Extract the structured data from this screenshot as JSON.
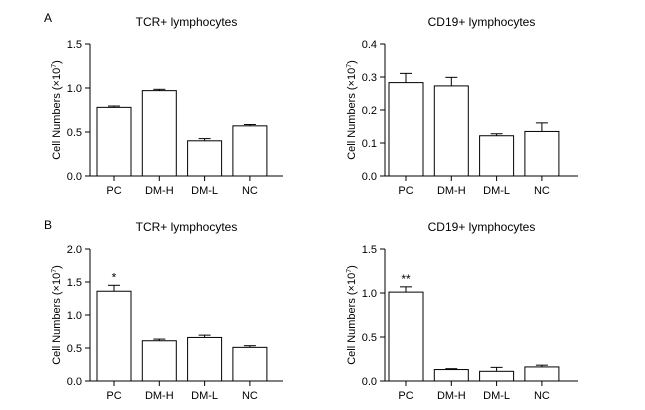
{
  "panels": [
    {
      "letter": "A"
    },
    {
      "letter": "B"
    }
  ],
  "chart_data": [
    {
      "type": "bar",
      "panel": "A",
      "title": "TCR+ lymphocytes",
      "ylabel_main": "Cell Numbers (×10",
      "ylabel_exp": "7",
      "ylabel_close": ")",
      "categories": [
        "PC",
        "DM-H",
        "DM-L",
        "NC"
      ],
      "values": [
        0.78,
        0.97,
        0.4,
        0.57
      ],
      "errors": [
        0.015,
        0.015,
        0.025,
        0.015
      ],
      "annotations": [
        "",
        "",
        "",
        ""
      ],
      "ylim": [
        0,
        1.5
      ],
      "yticks": [
        0,
        0.5,
        1.0,
        1.5
      ],
      "ytick_labels": [
        "0.0",
        "0.5",
        "1.0",
        "1.5"
      ]
    },
    {
      "type": "bar",
      "panel": "A",
      "title": "CD19+ lymphocytes",
      "ylabel_main": "Cell Numbers (×10",
      "ylabel_exp": "7",
      "ylabel_close": ")",
      "categories": [
        "PC",
        "DM-H",
        "DM-L",
        "NC"
      ],
      "values": [
        0.283,
        0.273,
        0.122,
        0.135
      ],
      "errors": [
        0.028,
        0.026,
        0.006,
        0.026
      ],
      "annotations": [
        "",
        "",
        "",
        ""
      ],
      "ylim": [
        0,
        0.4
      ],
      "yticks": [
        0,
        0.1,
        0.2,
        0.3,
        0.4
      ],
      "ytick_labels": [
        "0.0",
        "0.1",
        "0.2",
        "0.3",
        "0.4"
      ]
    },
    {
      "type": "bar",
      "panel": "B",
      "title": "TCR+ lymphocytes",
      "ylabel_main": "Cell Numbers (×10",
      "ylabel_exp": "7",
      "ylabel_close": ")",
      "categories": [
        "PC",
        "DM-H",
        "DM-L",
        "NC"
      ],
      "values": [
        1.36,
        0.61,
        0.66,
        0.51
      ],
      "errors": [
        0.09,
        0.025,
        0.035,
        0.025
      ],
      "annotations": [
        "*",
        "",
        "",
        ""
      ],
      "ylim": [
        0,
        2.0
      ],
      "yticks": [
        0,
        0.5,
        1.0,
        1.5,
        2.0
      ],
      "ytick_labels": [
        "0.0",
        "0.5",
        "1.0",
        "1.5",
        "2.0"
      ]
    },
    {
      "type": "bar",
      "panel": "B",
      "title": "CD19+ lymphocytes",
      "ylabel_main": "Cell Numbers (×10",
      "ylabel_exp": "7",
      "ylabel_close": ")",
      "categories": [
        "PC",
        "DM-H",
        "DM-L",
        "NC"
      ],
      "values": [
        1.01,
        0.13,
        0.11,
        0.16
      ],
      "errors": [
        0.06,
        0.01,
        0.045,
        0.02
      ],
      "annotations": [
        "**",
        "",
        "",
        ""
      ],
      "ylim": [
        0,
        1.5
      ],
      "yticks": [
        0,
        0.5,
        1.0,
        1.5
      ],
      "ytick_labels": [
        "0.0",
        "0.5",
        "1.0",
        "1.5"
      ]
    }
  ]
}
